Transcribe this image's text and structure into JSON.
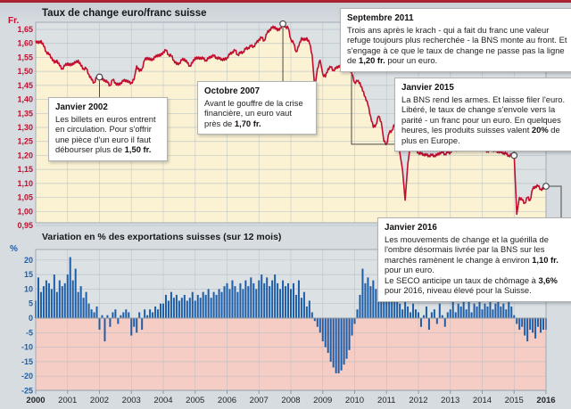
{
  "colors": {
    "accent_red": "#c20e2e",
    "accent_blue": "#1e5ea8",
    "area_cream": "#fbf1d3",
    "below_zero_pink": "#f6cdc5",
    "plot_bg": "#dce1e4",
    "top_border": "#a8232f",
    "grid": "#aebbc3",
    "connector": "#4a4a4a"
  },
  "chart_data": [
    {
      "type": "area-line",
      "title": "Taux de change euro/franc suisse",
      "unit_label": "Fr.",
      "ylabel": "Fr. par euro",
      "ylim": [
        0.95,
        1.675
      ],
      "x_range_years": [
        2000,
        2016
      ],
      "grid": true,
      "y_tick_labels": [
        "1,65",
        "1,60",
        "1,55",
        "1,50",
        "1,45",
        "1,40",
        "1,35",
        "1,30",
        "1,25",
        "1,20",
        "1,15",
        "1,10",
        "1,05",
        "1,00",
        "0,95"
      ],
      "y_tick_values": [
        1.65,
        1.6,
        1.55,
        1.5,
        1.45,
        1.4,
        1.35,
        1.3,
        1.25,
        1.2,
        1.15,
        1.1,
        1.05,
        1.0,
        0.95
      ],
      "monthly_values": [
        1.61,
        1.6,
        1.61,
        1.59,
        1.57,
        1.56,
        1.55,
        1.53,
        1.54,
        1.52,
        1.51,
        1.52,
        1.53,
        1.52,
        1.53,
        1.53,
        1.54,
        1.52,
        1.51,
        1.51,
        1.49,
        1.47,
        1.46,
        1.48,
        1.48,
        1.47,
        1.47,
        1.46,
        1.45,
        1.47,
        1.46,
        1.45,
        1.46,
        1.465,
        1.47,
        1.46,
        1.46,
        1.47,
        1.52,
        1.5,
        1.51,
        1.54,
        1.55,
        1.54,
        1.545,
        1.55,
        1.56,
        1.555,
        1.57,
        1.575,
        1.56,
        1.555,
        1.54,
        1.525,
        1.53,
        1.54,
        1.545,
        1.53,
        1.52,
        1.53,
        1.55,
        1.545,
        1.55,
        1.545,
        1.54,
        1.545,
        1.555,
        1.555,
        1.55,
        1.545,
        1.545,
        1.54,
        1.55,
        1.56,
        1.57,
        1.575,
        1.56,
        1.565,
        1.57,
        1.58,
        1.585,
        1.59,
        1.59,
        1.6,
        1.615,
        1.62,
        1.61,
        1.635,
        1.65,
        1.655,
        1.66,
        1.645,
        1.655,
        1.67,
        1.66,
        1.655,
        1.615,
        1.6,
        1.57,
        1.59,
        1.62,
        1.61,
        1.62,
        1.6,
        1.56,
        1.44,
        1.51,
        1.54,
        1.49,
        1.48,
        1.51,
        1.515,
        1.505,
        1.51,
        1.52,
        1.52,
        1.51,
        1.51,
        1.51,
        1.49,
        1.46,
        1.465,
        1.46,
        1.43,
        1.41,
        1.38,
        1.34,
        1.3,
        1.31,
        1.34,
        1.32,
        1.25,
        1.24,
        1.28,
        1.29,
        1.31,
        1.25,
        1.21,
        1.15,
        1.04,
        1.17,
        1.24,
        1.23,
        1.22,
        1.21,
        1.205,
        1.205,
        1.2,
        1.2,
        1.2,
        1.2,
        1.2,
        1.21,
        1.21,
        1.205,
        1.21,
        1.21,
        1.23,
        1.22,
        1.22,
        1.24,
        1.23,
        1.235,
        1.23,
        1.235,
        1.23,
        1.23,
        1.225,
        1.23,
        1.22,
        1.215,
        1.22,
        1.22,
        1.215,
        1.215,
        1.21,
        1.21,
        1.205,
        1.2,
        1.2,
        1.2,
        0.99,
        1.05,
        1.04,
        1.03,
        1.05,
        1.04,
        1.08,
        1.09,
        1.09,
        1.08,
        1.08,
        1.09
      ],
      "annotations": [
        {
          "id": "jan2002",
          "title": "Janvier 2002",
          "month_index": 24,
          "marker_value": 1.48,
          "body": [
            {
              "text": "Les billets en euros entrent en circulation. Pour s'offrir une pièce d'un euro il faut débourser plus de "
            },
            {
              "text": "1,50 fr.",
              "bold": true
            }
          ]
        },
        {
          "id": "oct2007",
          "title": "Octobre 2007",
          "month_index": 93,
          "marker_value": 1.67,
          "body": [
            {
              "text": "Avant le gouffre de la crise financière, un euro vaut près de "
            },
            {
              "text": "1,70 fr.",
              "bold": true
            }
          ]
        },
        {
          "id": "sep2011",
          "title": "Septembre 2011",
          "month_index": 141,
          "marker_value": 1.24,
          "body": [
            {
              "text": "Trois ans après le krach - qui a fait du franc une valeur refuge toujours plus recherchée - la BNS monte au front. Et s'engage à ce que le taux de change ne passe pas la ligne de "
            },
            {
              "text": "1,20 fr.",
              "bold": true
            },
            {
              "text": " pour un euro."
            }
          ]
        },
        {
          "id": "jan2015",
          "title": "Janvier 2015",
          "month_index": 180,
          "marker_value": 1.2,
          "body": [
            {
              "text": "La BNS rend les armes. Et laisse filer l'euro. Libéré, le taux de change s'envole vers la parité - un franc pour un euro. En quelques heures, les produits suisses valent "
            },
            {
              "text": "20%",
              "bold": true
            },
            {
              "text": " de plus en Europe."
            }
          ]
        },
        {
          "id": "jan2016",
          "title": "Janvier 2016",
          "month_index": 192,
          "marker_value": 1.09,
          "body": [
            {
              "text": "Les mouvements de change et la guérilla de l'ombre désormais livrée par la BNS sur les marchés ramènent le change à environ "
            },
            {
              "text": "1,10 fr.",
              "bold": true
            },
            {
              "text": " pour un euro."
            },
            {
              "break": true
            },
            {
              "text": "Le SECO anticipe un taux de chômage à "
            },
            {
              "text": "3,6%",
              "bold": true
            },
            {
              "text": " pour 2016, niveau élevé pour la Suisse."
            }
          ]
        }
      ]
    },
    {
      "type": "bar",
      "title": "Variation en % des exportations suisses (sur 12 mois)",
      "unit_label": "%",
      "ylim": [
        -26,
        23
      ],
      "grid": true,
      "y_tick_labels": [
        "20",
        "15",
        "10",
        "5",
        "0",
        "-5",
        "-10",
        "-15",
        "-20",
        "-25"
      ],
      "y_tick_values": [
        20,
        15,
        10,
        5,
        0,
        -5,
        -10,
        -15,
        -20,
        -25
      ],
      "x_tick_labels": [
        "2000",
        "2001",
        "2002",
        "2003",
        "2004",
        "2005",
        "2006",
        "2007",
        "2008",
        "2009",
        "2010",
        "2011",
        "2012",
        "2013",
        "2014",
        "2015",
        "2016"
      ],
      "x_bold_labels": [
        "2000",
        "2016"
      ],
      "monthly_values": [
        6,
        14,
        9,
        11,
        13,
        12,
        10,
        15,
        9,
        13,
        11,
        12,
        15,
        21,
        13,
        17,
        9,
        11,
        7,
        9,
        5,
        3,
        2,
        4,
        -4,
        1,
        -8,
        1,
        -3,
        2,
        3,
        -2,
        1,
        2,
        3,
        2,
        -6,
        -3,
        -5,
        2,
        -4,
        3,
        1,
        3,
        2,
        4,
        3,
        5,
        5,
        8,
        6,
        9,
        7,
        8,
        6,
        7,
        8,
        6,
        7,
        9,
        6,
        8,
        7,
        9,
        8,
        10,
        7,
        9,
        8,
        10,
        9,
        11,
        12,
        10,
        13,
        11,
        9,
        12,
        10,
        13,
        11,
        14,
        12,
        10,
        13,
        15,
        12,
        14,
        11,
        13,
        15,
        12,
        10,
        13,
        11,
        12,
        10,
        12,
        8,
        13,
        7,
        9,
        4,
        6,
        2,
        -1,
        -3,
        -5,
        -8,
        -10,
        -12,
        -15,
        -17,
        -19,
        -19,
        -18,
        -16,
        -14,
        -11,
        -6,
        -2,
        3,
        8,
        17,
        12,
        14,
        11,
        13,
        10,
        9,
        8,
        7,
        9,
        13,
        8,
        7,
        6,
        5,
        3,
        6,
        4,
        2,
        5,
        3,
        2,
        -3,
        1,
        4,
        -4,
        2,
        3,
        -2,
        5,
        1,
        -3,
        2,
        3,
        12,
        2,
        5,
        4,
        6,
        3,
        7,
        2,
        5,
        4,
        6,
        3,
        5,
        4,
        7,
        3,
        5,
        6,
        4,
        5,
        3,
        6,
        4,
        1,
        -2,
        -4,
        -3,
        -6,
        -8,
        -4,
        -5,
        -7,
        -3,
        -5,
        -4,
        -4
      ]
    }
  ]
}
